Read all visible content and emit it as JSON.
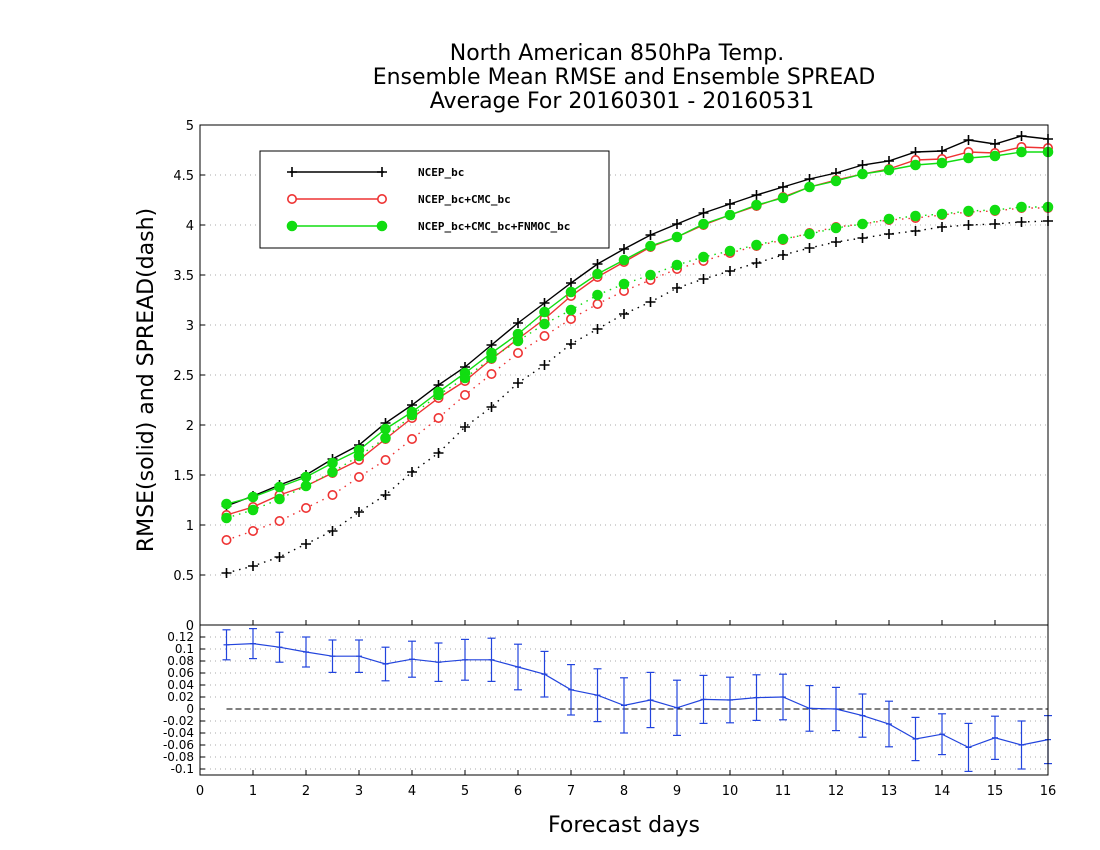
{
  "chart_data": [
    {
      "type": "line",
      "title": [
        "North American 850hPa Temp.",
        "Ensemble Mean RMSE and Ensemble SPREAD",
        "Average For 20160301 - 20160531"
      ],
      "xlabel": "Forecast days",
      "ylabel": "RMSE(solid) and SPREAD(dash)",
      "xlim": [
        0,
        16
      ],
      "ylim": [
        0,
        5
      ],
      "x_ticks": [
        "0",
        "1",
        "2",
        "3",
        "4",
        "5",
        "6",
        "7",
        "8",
        "9",
        "10",
        "11",
        "12",
        "13",
        "14",
        "15",
        "16"
      ],
      "y_ticks": [
        "0.5",
        "1",
        "1.5",
        "2",
        "2.5",
        "3",
        "3.5",
        "4",
        "4.5",
        "5"
      ],
      "y_tick_zero": "0",
      "grid": true,
      "legend_position": "top-left",
      "x": [
        0.5,
        1,
        1.5,
        2,
        2.5,
        3,
        3.5,
        4,
        4.5,
        5,
        5.5,
        6,
        6.5,
        7,
        7.5,
        8,
        8.5,
        9,
        9.5,
        10,
        10.5,
        11,
        11.5,
        12,
        12.5,
        13,
        13.5,
        14,
        14.5,
        15,
        15.5,
        16
      ],
      "series": [
        {
          "name": "NCEP_bc",
          "color": "#000000",
          "marker": "plus",
          "rmse": [
            1.19,
            1.29,
            1.4,
            1.5,
            1.66,
            1.8,
            2.02,
            2.2,
            2.4,
            2.58,
            2.8,
            3.02,
            3.22,
            3.42,
            3.61,
            3.76,
            3.9,
            4.01,
            4.12,
            4.21,
            4.3,
            4.38,
            4.46,
            4.52,
            4.6,
            4.64,
            4.73,
            4.74,
            4.85,
            4.81,
            4.89,
            4.86
          ],
          "spread": [
            0.52,
            0.59,
            0.68,
            0.81,
            0.94,
            1.13,
            1.3,
            1.53,
            1.72,
            1.98,
            2.18,
            2.42,
            2.6,
            2.81,
            2.96,
            3.11,
            3.23,
            3.37,
            3.46,
            3.54,
            3.62,
            3.7,
            3.77,
            3.83,
            3.87,
            3.91,
            3.94,
            3.98,
            4.0,
            4.01,
            4.03,
            4.04
          ]
        },
        {
          "name": "NCEP_bc+CMC_bc",
          "color": "#ee3333",
          "marker": "open-circle",
          "rmse": [
            1.1,
            1.18,
            1.3,
            1.39,
            1.52,
            1.65,
            1.86,
            2.07,
            2.27,
            2.44,
            2.66,
            2.86,
            3.06,
            3.29,
            3.48,
            3.63,
            3.78,
            3.88,
            4.0,
            4.1,
            4.19,
            4.28,
            4.38,
            4.45,
            4.51,
            4.56,
            4.65,
            4.66,
            4.73,
            4.72,
            4.78,
            4.77
          ],
          "spread": [
            0.85,
            0.94,
            1.04,
            1.17,
            1.3,
            1.48,
            1.65,
            1.86,
            2.07,
            2.3,
            2.51,
            2.72,
            2.89,
            3.06,
            3.21,
            3.34,
            3.45,
            3.56,
            3.64,
            3.72,
            3.79,
            3.85,
            3.92,
            3.98,
            4.01,
            4.05,
            4.07,
            4.1,
            4.13,
            4.14,
            4.17,
            4.17
          ]
        },
        {
          "name": "NCEP_bc+CMC_bc+FNMOC_bc",
          "color": "#11dd11",
          "marker": "filled-circle",
          "rmse": [
            1.21,
            1.28,
            1.38,
            1.48,
            1.62,
            1.75,
            1.96,
            2.13,
            2.33,
            2.52,
            2.72,
            2.91,
            3.13,
            3.33,
            3.51,
            3.65,
            3.79,
            3.88,
            4.01,
            4.1,
            4.2,
            4.27,
            4.38,
            4.44,
            4.51,
            4.55,
            4.6,
            4.62,
            4.67,
            4.69,
            4.73,
            4.73
          ],
          "spread": [
            1.07,
            1.15,
            1.26,
            1.39,
            1.53,
            1.69,
            1.87,
            2.1,
            2.3,
            2.47,
            2.67,
            2.84,
            3.01,
            3.15,
            3.3,
            3.41,
            3.5,
            3.6,
            3.68,
            3.74,
            3.8,
            3.86,
            3.91,
            3.97,
            4.01,
            4.06,
            4.09,
            4.11,
            4.14,
            4.15,
            4.18,
            4.18
          ]
        }
      ]
    },
    {
      "type": "line",
      "xlim": [
        0,
        16
      ],
      "ylim": [
        -0.11,
        0.14
      ],
      "y_ticks": [
        "0.12",
        "0.1",
        "0.08",
        "0.06",
        "0.04",
        "0.02",
        "0",
        "-0.02",
        "-0.04",
        "-0.06",
        "-0.08",
        "-0.1"
      ],
      "grid": true,
      "series": [
        {
          "color": "#2244dd",
          "marker": "error-bar",
          "x": [
            0.5,
            1,
            1.5,
            2,
            2.5,
            3,
            3.5,
            4,
            4.5,
            5,
            5.5,
            6,
            6.5,
            7,
            7.5,
            8,
            8.5,
            9,
            9.5,
            10,
            10.5,
            11,
            11.5,
            12,
            12.5,
            13,
            13.5,
            14,
            14.5,
            15,
            15.5,
            16
          ],
          "values": [
            0.107,
            0.109,
            0.103,
            0.095,
            0.088,
            0.088,
            0.075,
            0.083,
            0.078,
            0.082,
            0.082,
            0.07,
            0.058,
            0.032,
            0.023,
            0.006,
            0.015,
            0.002,
            0.016,
            0.015,
            0.019,
            0.02,
            0.001,
            0.0,
            -0.011,
            -0.025,
            -0.05,
            -0.042,
            -0.064,
            -0.048,
            -0.06,
            -0.051
          ],
          "err": [
            0.025,
            0.025,
            0.025,
            0.025,
            0.027,
            0.027,
            0.028,
            0.03,
            0.032,
            0.034,
            0.036,
            0.038,
            0.038,
            0.042,
            0.044,
            0.046,
            0.046,
            0.046,
            0.04,
            0.038,
            0.038,
            0.038,
            0.038,
            0.036,
            0.036,
            0.038,
            0.036,
            0.034,
            0.04,
            0.036,
            0.04,
            0.04
          ]
        }
      ],
      "zero_line": true
    }
  ]
}
